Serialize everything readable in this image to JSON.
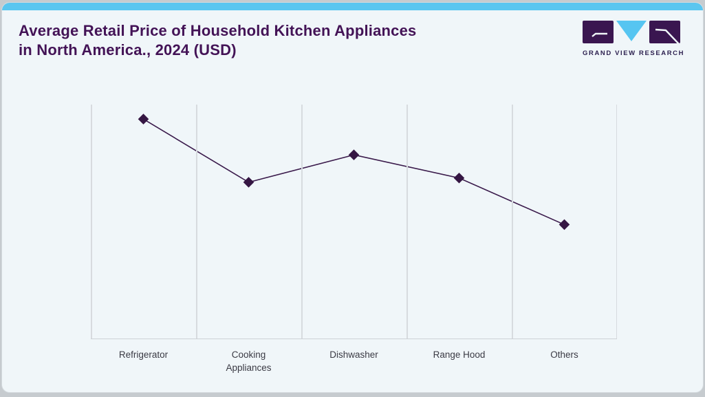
{
  "header": {
    "title_line1": "Average Retail Price of Household Kitchen Appliances",
    "title_line2": "in North America., 2024 (USD)"
  },
  "brand": {
    "logo_text": "GRAND VIEW RESEARCH",
    "logo_purple": "#3a1650",
    "logo_blue": "#56c5f1"
  },
  "colors": {
    "page_background": "#c6cbcf",
    "card_background": "#f0f6f9",
    "accent_bar": "#5ac6f0",
    "title_text": "#431356",
    "gridline": "#d7dbdf",
    "axis_label_text": "#3a3a44"
  },
  "chart_data": {
    "type": "line",
    "title": "Average Retail Price of Household Kitchen Appliances in North America., 2024 (USD)",
    "categories": [
      "Refrigerator",
      "Cooking Appliances",
      "Dishwasher",
      "Range Hood",
      "Others"
    ],
    "series": [
      {
        "name": "Average Retail Price",
        "values": [
          93.8,
          66.8,
          78.5,
          68.6,
          48.7
        ]
      }
    ],
    "values_unit": "percent-of-plot-height (chart displays no numeric y-axis labels or data labels)",
    "xlabel": "",
    "ylabel": "",
    "ylim": [
      0,
      100
    ],
    "y_axis_tick_labels": "none",
    "data_value_labels": "none",
    "marker": "diamond",
    "line_color": "#3a1a4b",
    "marker_color": "#351643",
    "grid": "vertical category separators only",
    "legend": "none"
  }
}
